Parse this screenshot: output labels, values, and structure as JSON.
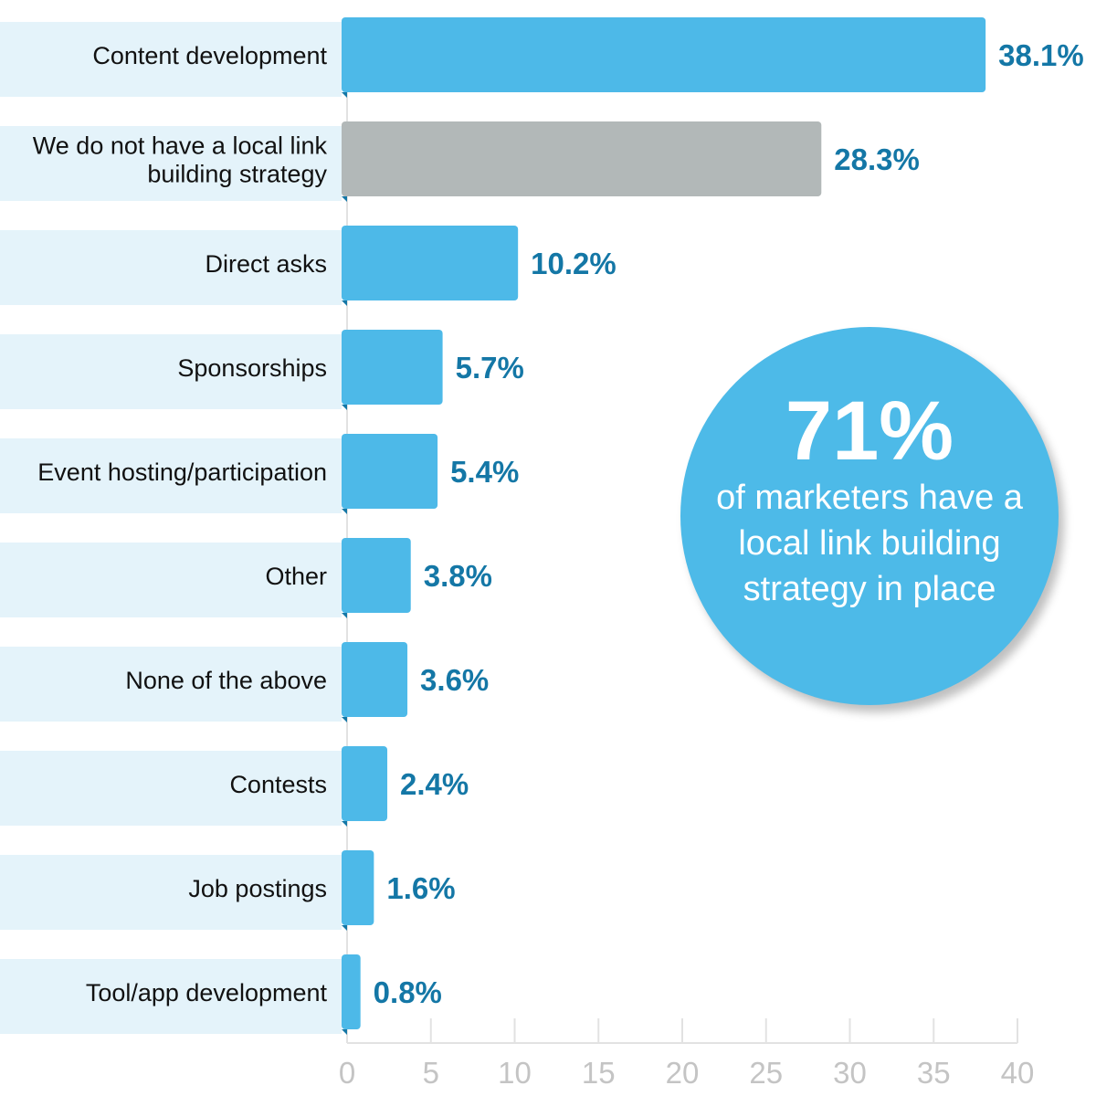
{
  "chart_data": {
    "type": "bar",
    "orientation": "horizontal",
    "categories": [
      "Content development",
      "We do not have a local link building strategy",
      "Direct asks",
      "Sponsorships",
      "Event hosting/participation",
      "Other",
      "None of the above",
      "Contests",
      "Job postings",
      "Tool/app development"
    ],
    "category_lines": [
      [
        "Content development"
      ],
      [
        "We do not have a local link",
        "building strategy"
      ],
      [
        "Direct asks"
      ],
      [
        "Sponsorships"
      ],
      [
        "Event hosting/participation"
      ],
      [
        "Other"
      ],
      [
        "None of the above"
      ],
      [
        "Contests"
      ],
      [
        "Job postings"
      ],
      [
        "Tool/app development"
      ]
    ],
    "values": [
      38.1,
      28.3,
      10.2,
      5.7,
      5.4,
      3.8,
      3.6,
      2.4,
      1.6,
      0.8
    ],
    "data_labels": [
      "38.1%",
      "28.3%",
      "10.2%",
      "5.7%",
      "5.4%",
      "3.8%",
      "3.6%",
      "2.4%",
      "1.6%",
      "0.8%"
    ],
    "highlight_index": 1,
    "xlim": [
      0,
      40
    ],
    "xticks": [
      "0",
      "5",
      "10",
      "15",
      "20",
      "25",
      "30",
      "35",
      "40"
    ],
    "grid": "vertical",
    "colors": {
      "bar": "#4db9e8",
      "highlight": "#b2b8b8",
      "label_band": "#e4f3fa",
      "value_text": "#1477a6",
      "tick_text": "#c4c4c4"
    }
  },
  "callout": {
    "headline": "71%",
    "text": "of marketers have a local link building strategy in place",
    "color": "#4dbae8"
  }
}
